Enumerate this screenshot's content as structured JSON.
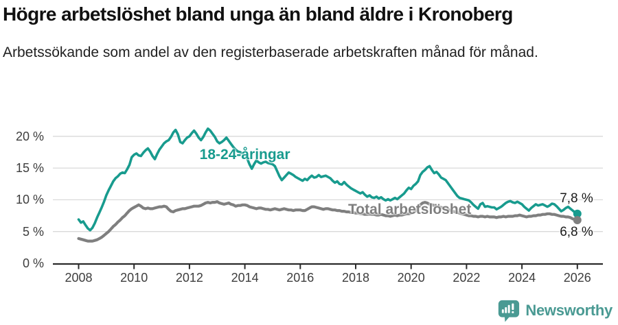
{
  "header": {
    "title": "Högre arbetslöshet bland unga än bland äldre i Kronoberg",
    "subtitle": "Arbetssökande som andel av den registerbaserade arbetskraften månad för månad."
  },
  "chart_data": {
    "type": "line",
    "title": "Högre arbetslöshet bland unga än bland äldre i Kronoberg",
    "subtitle": "Arbetssökande som andel av den registerbaserade arbetskraften månad för månad.",
    "x_start": 2008.0,
    "points_per_year": 12,
    "x_range_shown": [
      2007.1,
      2026.9
    ],
    "ylim": [
      0,
      22.5
    ],
    "grid": true,
    "yticks": [
      {
        "value": 0,
        "label": "0 %"
      },
      {
        "value": 5,
        "label": "5 %"
      },
      {
        "value": 10,
        "label": "10 %"
      },
      {
        "value": 15,
        "label": "15 %"
      },
      {
        "value": 20,
        "label": "20 %"
      }
    ],
    "xticks": [
      {
        "value": 2008,
        "label": "2008"
      },
      {
        "value": 2010,
        "label": "2010"
      },
      {
        "value": 2012,
        "label": "2012"
      },
      {
        "value": 2014,
        "label": "2014"
      },
      {
        "value": 2016,
        "label": "2016"
      },
      {
        "value": 2018,
        "label": "2018"
      },
      {
        "value": 2020,
        "label": "2020"
      },
      {
        "value": 2022,
        "label": "2022"
      },
      {
        "value": 2024,
        "label": "2024"
      },
      {
        "value": 2026,
        "label": "2026"
      }
    ],
    "series": [
      {
        "name": "18-24-åringar",
        "color": "#189b8e",
        "label_x": 2014.0,
        "label_y": 17.1,
        "end_label": "7,8 %",
        "end_value": 7.8,
        "values": [
          6.9,
          6.4,
          6.6,
          6.0,
          5.5,
          5.2,
          5.6,
          6.3,
          7.2,
          8.0,
          8.8,
          9.7,
          10.7,
          11.5,
          12.2,
          12.9,
          13.4,
          13.7,
          14.1,
          14.3,
          14.2,
          14.8,
          15.5,
          16.7,
          17.1,
          17.3,
          17.0,
          16.9,
          17.4,
          17.8,
          18.1,
          17.6,
          16.9,
          16.4,
          17.2,
          17.9,
          18.4,
          18.9,
          19.2,
          19.4,
          19.9,
          20.6,
          21.0,
          20.3,
          19.1,
          18.9,
          19.4,
          19.8,
          20.0,
          20.5,
          20.9,
          20.4,
          19.8,
          19.4,
          19.9,
          20.6,
          21.2,
          20.9,
          20.4,
          19.9,
          19.2,
          18.9,
          19.1,
          19.4,
          19.8,
          19.3,
          18.8,
          18.3,
          17.9,
          17.6,
          17.5,
          17.3,
          17.0,
          16.5,
          15.6,
          14.9,
          15.6,
          16.2,
          15.9,
          15.7,
          15.9,
          16.0,
          15.8,
          15.7,
          15.6,
          15.3,
          14.5,
          13.7,
          13.1,
          13.5,
          13.9,
          14.3,
          14.1,
          13.9,
          13.6,
          13.4,
          13.2,
          13.0,
          13.3,
          13.1,
          13.5,
          13.8,
          13.5,
          13.6,
          13.9,
          13.6,
          13.7,
          13.8,
          13.6,
          13.4,
          13.0,
          12.7,
          12.9,
          12.5,
          12.4,
          12.8,
          12.4,
          12.1,
          11.8,
          11.6,
          11.4,
          11.2,
          11.0,
          11.2,
          10.8,
          10.5,
          10.7,
          10.4,
          10.3,
          10.5,
          10.2,
          10.4,
          10.1,
          9.9,
          10.1,
          9.9,
          10.1,
          10.3,
          10.1,
          10.4,
          10.7,
          11.0,
          11.5,
          11.9,
          11.7,
          12.2,
          12.5,
          12.9,
          13.9,
          14.4,
          14.7,
          15.1,
          15.3,
          14.7,
          14.2,
          14.4,
          14.0,
          13.5,
          13.3,
          13.1,
          12.6,
          12.1,
          11.6,
          11.1,
          10.6,
          10.3,
          10.2,
          10.1,
          10.0,
          9.9,
          9.6,
          9.2,
          8.9,
          8.6,
          9.3,
          9.5,
          8.9,
          9.0,
          8.9,
          8.8,
          8.8,
          8.5,
          8.7,
          8.9,
          9.2,
          9.5,
          9.7,
          9.8,
          9.6,
          9.5,
          9.7,
          9.5,
          9.3,
          8.9,
          8.6,
          8.3,
          8.7,
          9.0,
          9.3,
          9.1,
          9.2,
          9.3,
          9.1,
          8.9,
          9.1,
          9.4,
          9.3,
          9.0,
          8.6,
          8.2,
          8.4,
          8.7,
          8.9,
          8.6,
          8.3,
          8.0,
          7.8
        ]
      },
      {
        "name": "Total arbetslöshet",
        "color": "#7f7f7f",
        "label_x": 2019.95,
        "label_y": 8.4,
        "end_label": "6,8 %",
        "end_value": 6.8,
        "values": [
          3.9,
          3.8,
          3.7,
          3.6,
          3.5,
          3.5,
          3.5,
          3.6,
          3.7,
          3.9,
          4.1,
          4.4,
          4.7,
          5.0,
          5.4,
          5.8,
          6.1,
          6.5,
          6.8,
          7.2,
          7.5,
          7.9,
          8.3,
          8.6,
          8.8,
          9.0,
          9.2,
          9.0,
          8.7,
          8.6,
          8.7,
          8.6,
          8.6,
          8.7,
          8.8,
          8.9,
          8.9,
          9.0,
          8.9,
          8.5,
          8.2,
          8.1,
          8.3,
          8.4,
          8.5,
          8.6,
          8.6,
          8.7,
          8.8,
          8.9,
          9.0,
          9.0,
          9.0,
          9.1,
          9.3,
          9.5,
          9.6,
          9.5,
          9.6,
          9.6,
          9.7,
          9.5,
          9.4,
          9.3,
          9.4,
          9.5,
          9.3,
          9.2,
          9.0,
          9.1,
          9.1,
          9.2,
          9.2,
          9.1,
          8.9,
          8.8,
          8.7,
          8.6,
          8.7,
          8.7,
          8.6,
          8.5,
          8.5,
          8.4,
          8.5,
          8.6,
          8.5,
          8.4,
          8.5,
          8.6,
          8.5,
          8.4,
          8.4,
          8.3,
          8.4,
          8.4,
          8.4,
          8.3,
          8.3,
          8.5,
          8.7,
          8.9,
          8.9,
          8.8,
          8.7,
          8.6,
          8.5,
          8.6,
          8.6,
          8.5,
          8.4,
          8.4,
          8.3,
          8.3,
          8.2,
          8.2,
          8.1,
          8.1,
          8.0,
          8.0,
          7.9,
          7.9,
          7.8,
          7.8,
          7.7,
          7.7,
          7.8,
          7.7,
          7.7,
          7.6,
          7.6,
          7.7,
          7.6,
          7.5,
          7.5,
          7.4,
          7.5,
          7.6,
          7.5,
          7.6,
          7.6,
          7.7,
          7.8,
          7.8,
          7.9,
          8.0,
          8.3,
          8.8,
          9.2,
          9.5,
          9.6,
          9.5,
          9.3,
          9.2,
          9.1,
          9.0,
          8.9,
          8.8,
          8.7,
          8.6,
          8.5,
          8.3,
          8.2,
          8.1,
          8.0,
          7.9,
          7.8,
          7.7,
          7.6,
          7.5,
          7.5,
          7.4,
          7.4,
          7.3,
          7.4,
          7.4,
          7.3,
          7.4,
          7.3,
          7.3,
          7.3,
          7.2,
          7.3,
          7.3,
          7.4,
          7.3,
          7.4,
          7.4,
          7.4,
          7.5,
          7.5,
          7.6,
          7.5,
          7.4,
          7.3,
          7.4,
          7.4,
          7.5,
          7.5,
          7.6,
          7.6,
          7.7,
          7.7,
          7.8,
          7.8,
          7.7,
          7.7,
          7.6,
          7.5,
          7.4,
          7.4,
          7.3,
          7.3,
          7.2,
          7.0,
          6.9,
          6.8
        ]
      }
    ],
    "colors": {
      "grid": "#d9d9d9",
      "axis": "#2b2b2b",
      "tick_text": "#3d3d3d",
      "end_label_text": "#1a1a1a"
    }
  },
  "footer": {
    "brand": "Newsworthy",
    "brand_color": "#4a9a93",
    "logo_icon": "newsworthy-bubble-barchart-icon"
  }
}
